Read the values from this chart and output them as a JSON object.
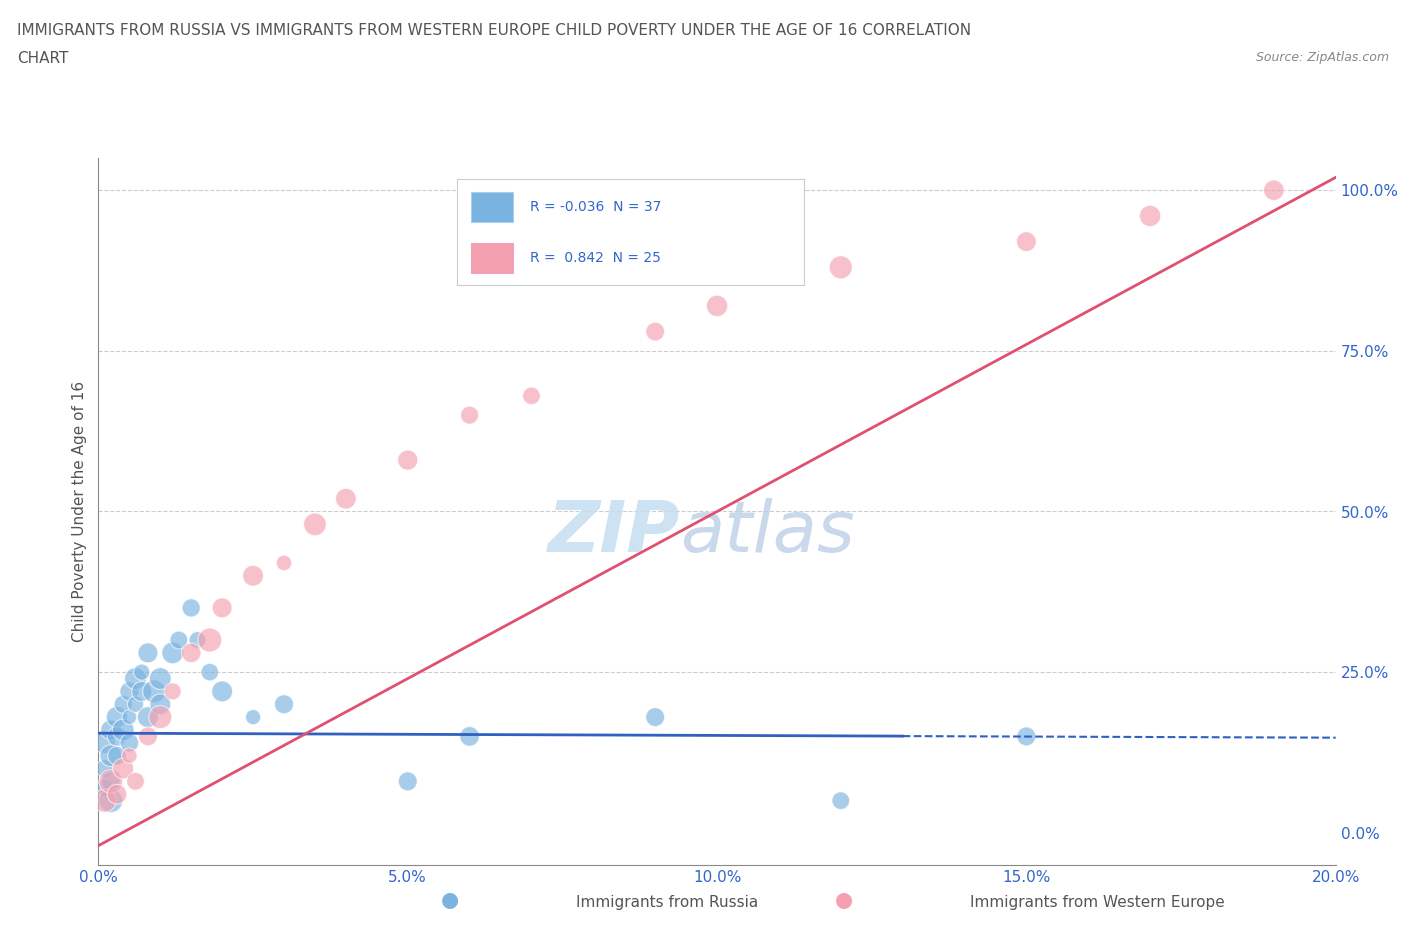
{
  "title_line1": "IMMIGRANTS FROM RUSSIA VS IMMIGRANTS FROM WESTERN EUROPE CHILD POVERTY UNDER THE AGE OF 16 CORRELATION",
  "title_line2": "CHART",
  "source": "Source: ZipAtlas.com",
  "ylabel": "Child Poverty Under the Age of 16",
  "xlabel_russia": "Immigrants from Russia",
  "xlabel_western": "Immigrants from Western Europe",
  "xlim": [
    0.0,
    0.2
  ],
  "ylim": [
    -0.05,
    1.05
  ],
  "yticks": [
    0.0,
    0.25,
    0.5,
    0.75,
    1.0
  ],
  "ytick_labels": [
    "0.0%",
    "25.0%",
    "50.0%",
    "75.0%",
    "100.0%"
  ],
  "xticks": [
    0.0,
    0.05,
    0.1,
    0.15,
    0.2
  ],
  "xtick_labels": [
    "0.0%",
    "5.0%",
    "10.0%",
    "15.0%",
    "20.0%"
  ],
  "r_russia": -0.036,
  "n_russia": 37,
  "r_western": 0.842,
  "n_western": 25,
  "color_russia": "#7ab3e0",
  "color_western": "#f4a0b0",
  "line_russia": "#3060c0",
  "line_western": "#e05070",
  "watermark_zip": "ZIP",
  "watermark_atlas": "atlas",
  "russia_x": [
    0.001,
    0.001,
    0.001,
    0.002,
    0.002,
    0.002,
    0.002,
    0.003,
    0.003,
    0.003,
    0.004,
    0.004,
    0.005,
    0.005,
    0.005,
    0.006,
    0.006,
    0.007,
    0.007,
    0.008,
    0.008,
    0.009,
    0.01,
    0.01,
    0.012,
    0.013,
    0.015,
    0.016,
    0.018,
    0.02,
    0.025,
    0.03,
    0.05,
    0.06,
    0.09,
    0.12,
    0.15
  ],
  "russia_y": [
    0.14,
    0.1,
    0.07,
    0.16,
    0.12,
    0.08,
    0.05,
    0.18,
    0.15,
    0.12,
    0.2,
    0.16,
    0.22,
    0.18,
    0.14,
    0.24,
    0.2,
    0.25,
    0.22,
    0.28,
    0.18,
    0.22,
    0.24,
    0.2,
    0.28,
    0.3,
    0.35,
    0.3,
    0.25,
    0.22,
    0.18,
    0.2,
    0.08,
    0.15,
    0.18,
    0.05,
    0.15
  ],
  "western_x": [
    0.001,
    0.002,
    0.003,
    0.004,
    0.005,
    0.006,
    0.008,
    0.01,
    0.012,
    0.015,
    0.018,
    0.02,
    0.025,
    0.03,
    0.035,
    0.04,
    0.05,
    0.06,
    0.07,
    0.09,
    0.1,
    0.12,
    0.15,
    0.17,
    0.19
  ],
  "western_y": [
    0.05,
    0.08,
    0.06,
    0.1,
    0.12,
    0.08,
    0.15,
    0.18,
    0.22,
    0.28,
    0.3,
    0.35,
    0.4,
    0.42,
    0.48,
    0.52,
    0.58,
    0.65,
    0.68,
    0.78,
    0.82,
    0.88,
    0.92,
    0.96,
    1.0
  ],
  "russia_line_x": [
    0.0,
    0.2
  ],
  "russia_line_y": [
    0.155,
    0.148
  ],
  "western_line_x": [
    0.0,
    0.2
  ],
  "western_line_y": [
    -0.02,
    1.02
  ]
}
